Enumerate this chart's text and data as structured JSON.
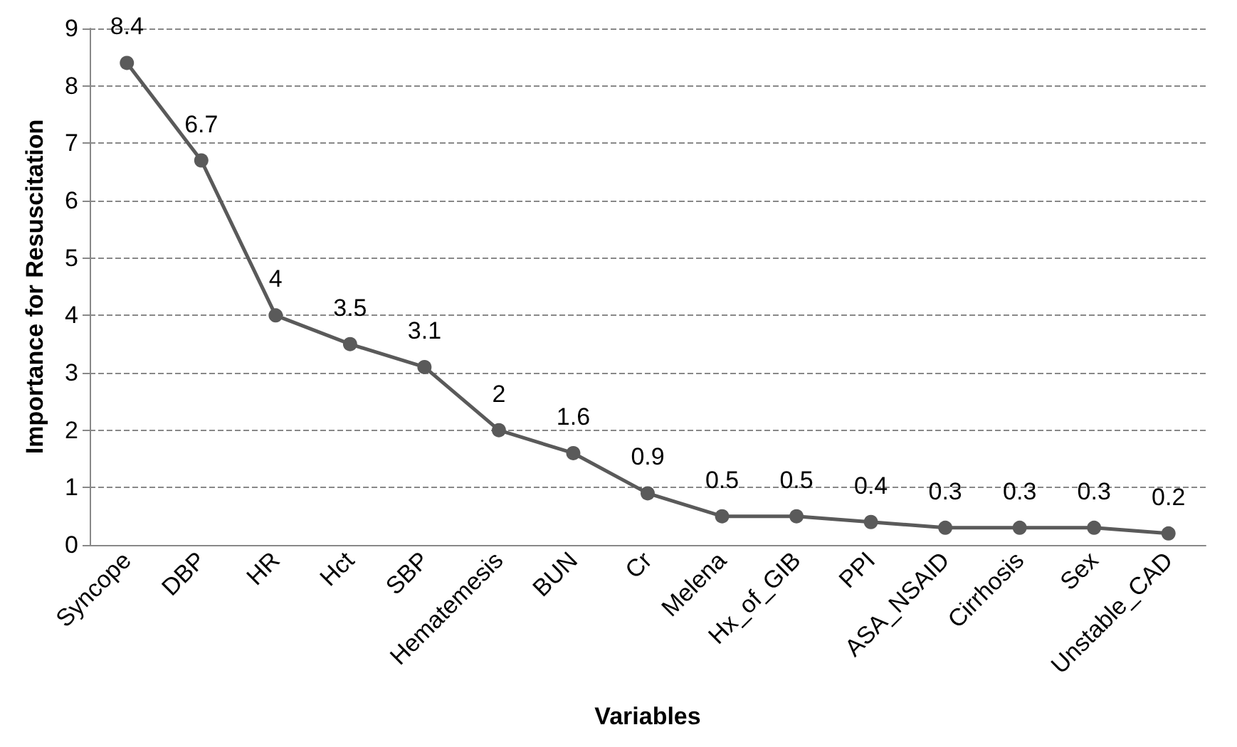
{
  "chart_data": {
    "type": "line",
    "xlabel": "Variables",
    "ylabel": "Importance for Resuscitation",
    "categories": [
      "Syncope",
      "DBP",
      "HR",
      "Hct",
      "SBP",
      "Hematemesis",
      "BUN",
      "Cr",
      "Melena",
      "Hx_of_GIB",
      "PPI",
      "ASA_NSAID",
      "Cirrhosis",
      "Sex",
      "Unstable_CAD"
    ],
    "series": [
      {
        "color": "#5a5a5a",
        "values": [
          8.4,
          6.7,
          4,
          3.5,
          3.1,
          2,
          1.6,
          0.9,
          0.5,
          0.5,
          0.4,
          0.3,
          0.3,
          0.3,
          0.2
        ]
      }
    ],
    "ylim": [
      0,
      9
    ],
    "yticks": [
      0,
      1,
      2,
      3,
      4,
      5,
      6,
      7,
      8,
      9
    ],
    "grid": "y",
    "marker": "circle",
    "line_style": "solid",
    "data_labels": true
  }
}
